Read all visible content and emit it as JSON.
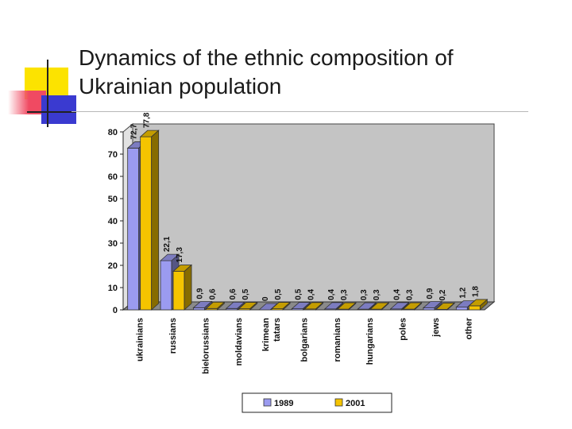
{
  "slide": {
    "title_line1": "Dynamics of the ethnic composition of",
    "title_line2": "Ukrainian population"
  },
  "colors": {
    "series_1989": "#9b9bf0",
    "series_2001": "#f5c400",
    "back_wall": "#c4c4c4",
    "accent_yellow": "#fce300",
    "accent_red": "#f04a62",
    "accent_blue": "#3a3ad0"
  },
  "chart_data": {
    "type": "bar",
    "style": "3d-clustered",
    "categories": [
      "ukrainians",
      "russians",
      "bielorussians",
      "moldavians",
      "krimean tatars",
      "bolgarians",
      "romanians",
      "hungarians",
      "poles",
      "jews",
      "other"
    ],
    "series": [
      {
        "name": "1989",
        "values": [
          72.7,
          22.1,
          0.9,
          0.6,
          0,
          0.5,
          0.4,
          0.3,
          0.4,
          0.9,
          1.2
        ],
        "labels": [
          "72,7",
          "22,1",
          "0,9",
          "0,6",
          "0",
          "0,5",
          "0,4",
          "0,3",
          "0,4",
          "0,9",
          "1,2"
        ]
      },
      {
        "name": "2001",
        "values": [
          77.8,
          17.3,
          0.6,
          0.5,
          0.5,
          0.4,
          0.3,
          0.3,
          0.3,
          0.2,
          1.8
        ],
        "labels": [
          "77,8",
          "17,3",
          "0,6",
          "0,5",
          "0,5",
          "0,4",
          "0,3",
          "0,3",
          "0,3",
          "0,2",
          "1,8"
        ]
      }
    ],
    "ylim": [
      0,
      80
    ],
    "yticks": [
      0,
      10,
      20,
      30,
      40,
      50,
      60,
      70,
      80
    ],
    "grid": false,
    "legend": "bottom"
  }
}
